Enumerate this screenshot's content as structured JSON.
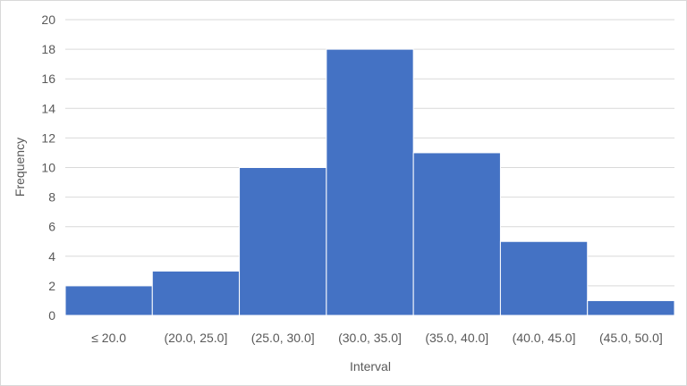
{
  "chart_data": {
    "type": "bar",
    "title": "",
    "xlabel": "Interval",
    "ylabel": "Frequency",
    "categories": [
      "≤ 20.0",
      "(20.0, 25.0]",
      "(25.0, 30.0]",
      "(30.0, 35.0]",
      "(35.0, 40.0]",
      "(40.0, 45.0]",
      "(45.0, 50.0]"
    ],
    "values": [
      2,
      3,
      10,
      18,
      11,
      5,
      1
    ],
    "ylim": [
      0,
      20
    ],
    "yticks": [
      "0",
      "2",
      "4",
      "6",
      "8",
      "10",
      "12",
      "14",
      "16",
      "18",
      "20"
    ],
    "grid": true,
    "legend": "none",
    "bar_color": "#4472C4",
    "grid_color": "#d9d9d9"
  }
}
